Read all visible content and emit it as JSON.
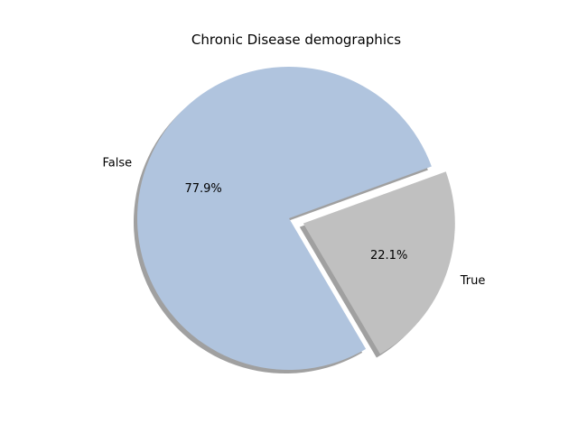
{
  "chart_data": {
    "type": "pie",
    "title": "Chronic Disease demographics",
    "slices": [
      {
        "label": "False",
        "value": 77.9,
        "pct_label": "77.9%",
        "color": "#b0c4de",
        "explode": 0
      },
      {
        "label": "True",
        "value": 22.1,
        "pct_label": "22.1%",
        "color": "#c0c0c0",
        "explode": 0.1
      }
    ],
    "start_angle_deg": 20,
    "shadow": true,
    "shadow_color": "#808080"
  }
}
